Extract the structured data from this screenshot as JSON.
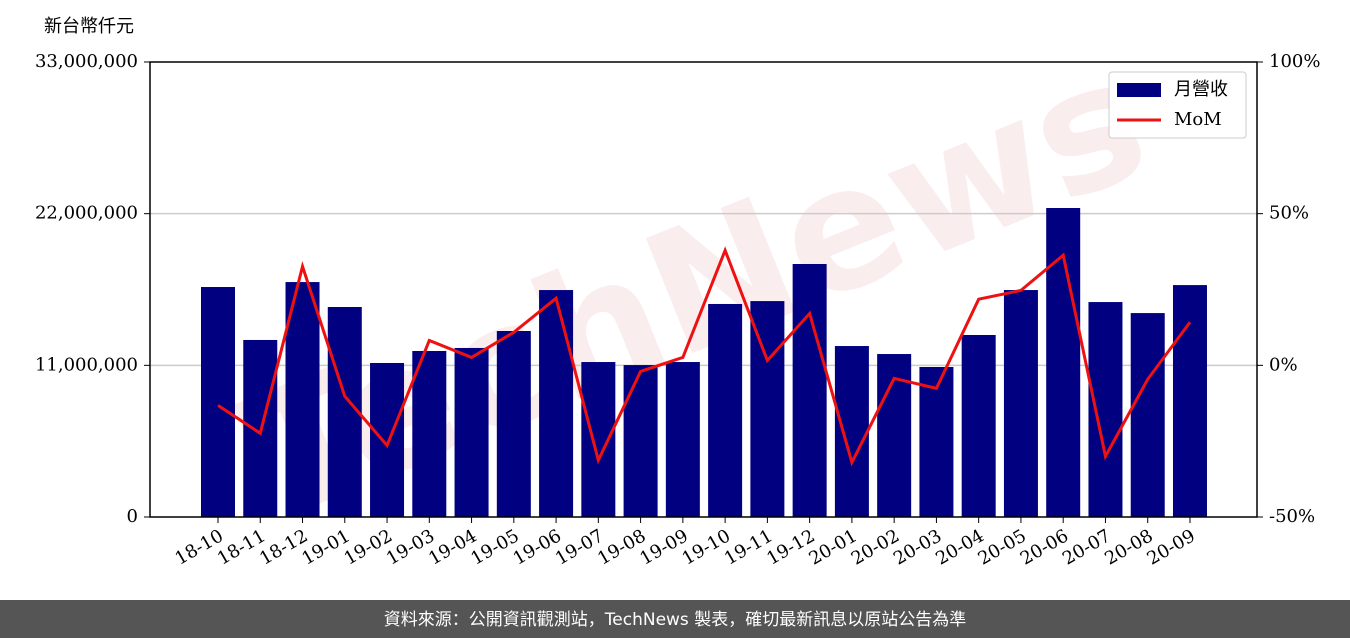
{
  "chart_data": {
    "type": "bar_line",
    "y_label": "新台幣仟元",
    "watermark": "TechNews",
    "footer": "資料來源：公開資訊觀測站，TechNews 製表，確切最新訊息以原站公告為準",
    "categories": [
      "18-10",
      "18-11",
      "18-12",
      "19-01",
      "19-02",
      "19-03",
      "19-04",
      "19-05",
      "19-06",
      "19-07",
      "19-08",
      "19-09",
      "19-10",
      "19-11",
      "19-12",
      "20-01",
      "20-02",
      "20-03",
      "20-04",
      "20-05",
      "20-06",
      "20-07",
      "20-08",
      "20-09"
    ],
    "series": [
      {
        "name": "月營收",
        "type": "bar",
        "color": "#000080",
        "values": [
          16680000,
          12840000,
          17040000,
          15230000,
          11170000,
          12040000,
          12260000,
          13490000,
          16460000,
          11240000,
          11020000,
          11240000,
          15450000,
          15660000,
          18350000,
          12400000,
          11820000,
          10880000,
          13200000,
          16460000,
          22410000,
          15590000,
          14790000,
          16820000
        ]
      },
      {
        "name": "MoM",
        "type": "line",
        "axis": "y2",
        "color": "#ee1111",
        "values": [
          -13.2,
          -22.4,
          32.6,
          -10.2,
          -26.4,
          8.2,
          2.6,
          10.9,
          22.1,
          -31.3,
          -2.0,
          2.6,
          37.9,
          1.6,
          17.1,
          -32.0,
          -4.3,
          -7.6,
          21.8,
          24.7,
          36.3,
          -30.0,
          -4.6,
          14.2
        ]
      }
    ],
    "ylim": [
      0,
      33000000
    ],
    "yticks": [
      0,
      {
        "value": 11000000,
        "label": "11,000,000"
      },
      {
        "value": 22000000,
        "label": "22,000,000"
      },
      {
        "value": 33000000,
        "label": "33,000,000"
      }
    ],
    "y2lim": [
      -50,
      100
    ],
    "y2ticks": [
      {
        "value": -50,
        "label": "-50%"
      },
      {
        "value": 0,
        "label": "0%"
      },
      {
        "value": 50,
        "label": "50%"
      },
      {
        "value": 100,
        "label": "100%"
      }
    ],
    "grid": true,
    "legend": "upper right"
  }
}
